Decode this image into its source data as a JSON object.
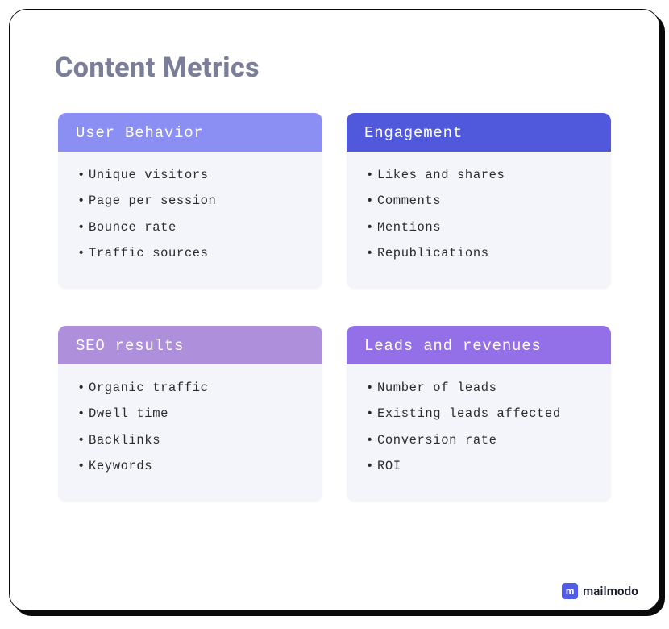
{
  "title": "Content Metrics",
  "title_color": "#7b7e98",
  "frame": {
    "border_color": "#0a0a0a",
    "border_radius": 22,
    "shadow_color": "#0a0a0a",
    "background": "#ffffff"
  },
  "layout": {
    "columns": 2,
    "rows": 2,
    "column_gap": 30,
    "row_gap": 46
  },
  "body_bg_color": "#f4f4fb",
  "item_text_color": "#2b2b2b",
  "cards": [
    {
      "id": "user-behavior",
      "title": "User Behavior",
      "header_bg": "#8b8ef2",
      "header_text": "#ffffff",
      "items": [
        "Unique visitors",
        "Page per session",
        "Bounce rate",
        "Traffic sources"
      ]
    },
    {
      "id": "engagement",
      "title": "Engagement",
      "header_bg": "#5059dc",
      "header_text": "#ffffff",
      "items": [
        "Likes and shares",
        "Comments",
        "Mentions",
        "Republications"
      ]
    },
    {
      "id": "seo-results",
      "title": "SEO results",
      "header_bg": "#ae8fdc",
      "header_text": "#ffffff",
      "items": [
        "Organic traffic",
        "Dwell time",
        "Backlinks",
        "Keywords"
      ]
    },
    {
      "id": "leads-revenues",
      "title": "Leads and revenues",
      "header_bg": "#9370e8",
      "header_text": "#ffffff",
      "items": [
        "Number of leads",
        "Existing leads affected",
        "Conversion rate",
        "ROI"
      ]
    }
  ],
  "brand": {
    "name": "mailmodo",
    "icon_bg": "#4f5bea",
    "icon_glyph": "m",
    "text_color": "#16182b"
  }
}
